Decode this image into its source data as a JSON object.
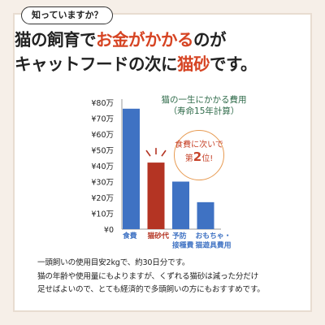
{
  "badge": "知っていますか？",
  "headline": {
    "line1_a": "猫の飼育で",
    "line1_b": "お金がかかる",
    "line1_c": "のが",
    "line2_a": "キャットフードの次に",
    "line2_b": "猫砂",
    "line2_c": "です。"
  },
  "chart_data": {
    "type": "bar",
    "title": "猫の一生にかかる費用",
    "subtitle": "（寿命15年計算）",
    "yticks": [
      "¥0",
      "¥10万",
      "¥20万",
      "¥30万",
      "¥40万",
      "¥50万",
      "¥60万",
      "¥70万",
      "¥80万"
    ],
    "ylim": [
      0,
      80
    ],
    "categories": [
      {
        "label": "食費",
        "lines": [
          "食費"
        ],
        "value": 76,
        "color": "#3f72c3"
      },
      {
        "label": "猫砂代",
        "lines": [
          "猫砂代"
        ],
        "value": 42,
        "color": "#b43423"
      },
      {
        "label": "予防 接種費",
        "lines": [
          "予防",
          "接種費"
        ],
        "value": 30,
        "color": "#3f72c3"
      },
      {
        "label": "おもちゃ・猫遊具費用",
        "lines": [
          "おもちゃ・",
          "猫遊具費用"
        ],
        "value": 17,
        "color": "#3f72c3"
      }
    ],
    "label_color": "#3f72c3",
    "callout": {
      "line1": "食費に次いで",
      "prefix": "第",
      "rank": "2",
      "suffix": "位!"
    }
  },
  "notes": [
    "一頭飼いの使用目安2kgで、約30日分です。",
    "猫の年齢や使用量にもよりますが、くずれる猫砂は減った分だけ",
    "足せばよいので、とても経済的で多頭飼いの方にもおすすめです。"
  ]
}
